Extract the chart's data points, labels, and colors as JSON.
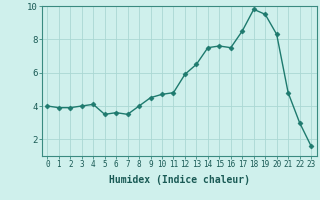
{
  "x": [
    0,
    1,
    2,
    3,
    4,
    5,
    6,
    7,
    8,
    9,
    10,
    11,
    12,
    13,
    14,
    15,
    16,
    17,
    18,
    19,
    20,
    21,
    22,
    23
  ],
  "y": [
    4.0,
    3.9,
    3.9,
    4.0,
    4.1,
    3.5,
    3.6,
    3.5,
    4.0,
    4.5,
    4.7,
    4.8,
    5.9,
    6.5,
    7.5,
    7.6,
    7.5,
    8.5,
    9.8,
    9.5,
    8.3,
    4.8,
    3.0,
    1.6
  ],
  "line_color": "#1e7a6e",
  "marker": "D",
  "marker_size": 2.5,
  "bg_color": "#cff0ec",
  "grid_color": "#aad8d3",
  "xlabel": "Humidex (Indice chaleur)",
  "ylim": [
    1,
    10
  ],
  "xlim": [
    -0.5,
    23.5
  ],
  "yticks": [
    2,
    4,
    6,
    8,
    10
  ],
  "xticks": [
    0,
    1,
    2,
    3,
    4,
    5,
    6,
    7,
    8,
    9,
    10,
    11,
    12,
    13,
    14,
    15,
    16,
    17,
    18,
    19,
    20,
    21,
    22,
    23
  ],
  "tick_fontsize": 5.5,
  "xlabel_fontsize": 7.0,
  "line_width": 1.0,
  "ytick_fontsize": 6.5
}
